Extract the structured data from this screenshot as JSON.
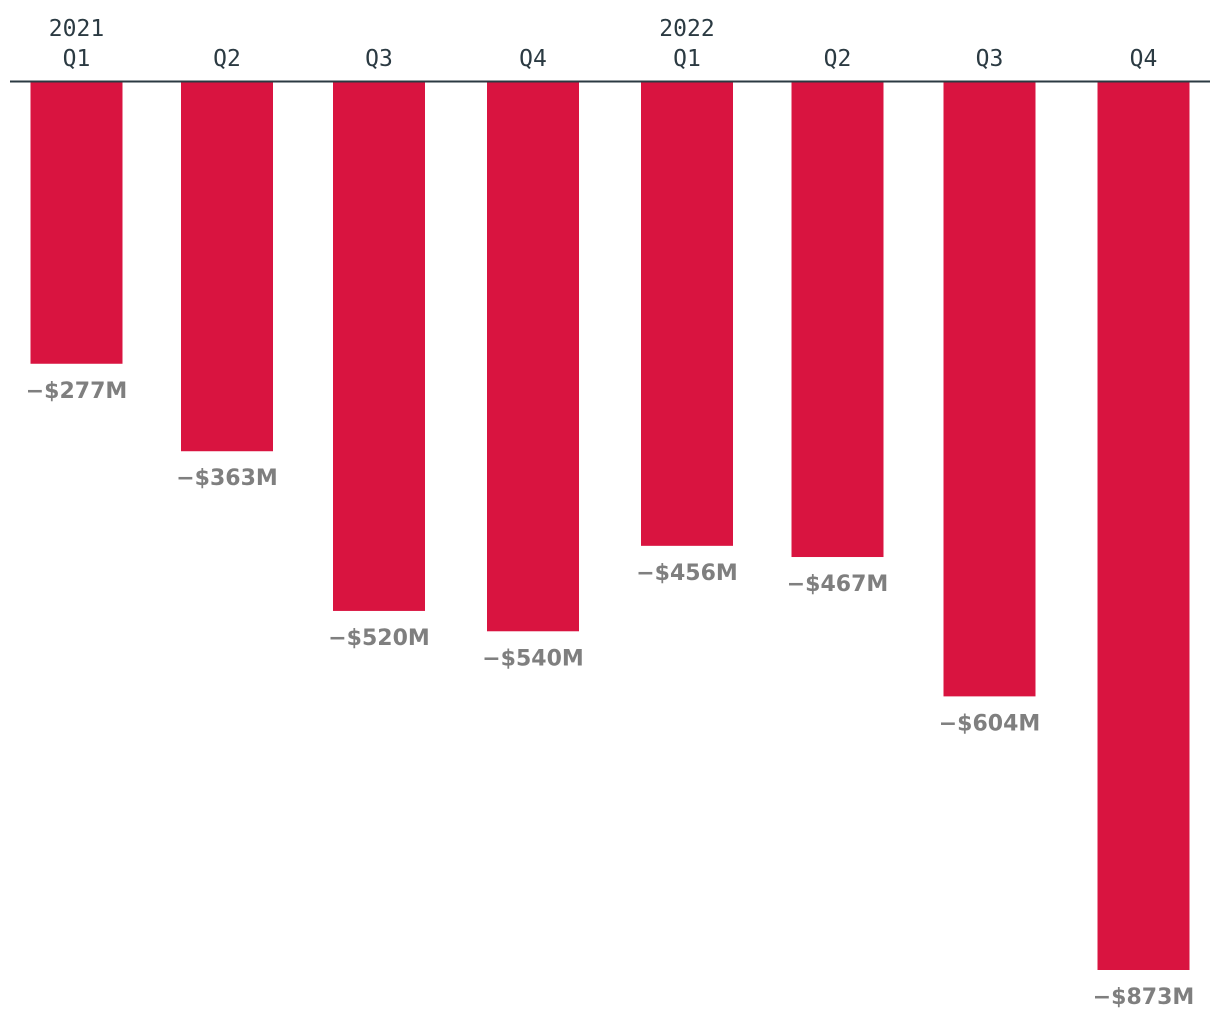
{
  "chart_data": {
    "type": "bar",
    "orientation": "vertical",
    "axis_position": "top",
    "grid": false,
    "legend": "none",
    "years": [
      {
        "label": "2021",
        "start_index": 0
      },
      {
        "label": "2022",
        "start_index": 4
      }
    ],
    "categories": [
      "Q1",
      "Q2",
      "Q3",
      "Q4",
      "Q1",
      "Q2",
      "Q3",
      "Q4"
    ],
    "values": [
      -277,
      -363,
      -520,
      -540,
      -456,
      -467,
      -604,
      -873
    ],
    "value_labels": [
      "−$277M",
      "−$363M",
      "−$520M",
      "−$540M",
      "−$456M",
      "−$467M",
      "−$604M",
      "−$873M"
    ],
    "unit": "$M",
    "ylim": [
      -873,
      0
    ],
    "colors": {
      "bar": "#d91440",
      "axis_line": "#2b3a42",
      "tick_text": "#2b3a42",
      "value_text": "#7f7f7f"
    }
  }
}
